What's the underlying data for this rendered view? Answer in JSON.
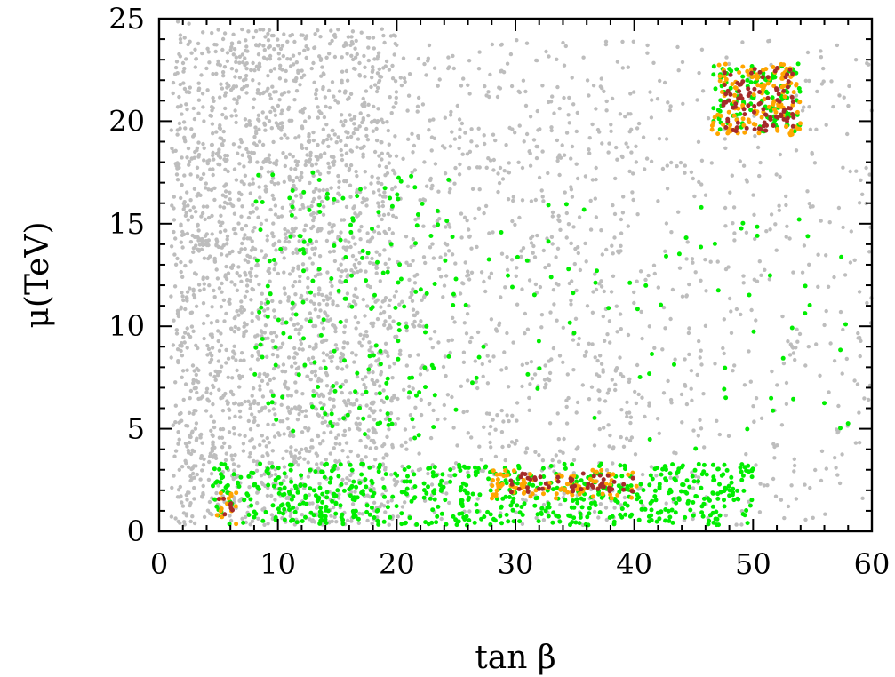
{
  "chart_data": {
    "type": "scatter",
    "xlabel": "tan β",
    "ylabel": "μ(TeV)",
    "xlim": [
      0,
      60
    ],
    "ylim": [
      0,
      25
    ],
    "xticks": [
      0,
      10,
      20,
      30,
      40,
      50,
      60
    ],
    "yticks": [
      0,
      5,
      10,
      15,
      20,
      25
    ],
    "xtick_labels": [
      "0",
      "10",
      "20",
      "30",
      "40",
      "50",
      "60"
    ],
    "ytick_labels": [
      "0",
      "5",
      "10",
      "15",
      "20",
      "25"
    ],
    "grid": false,
    "legend": "none",
    "colors": {
      "all_points": "#bdbdbd",
      "constraint_a": "#00ee00",
      "constraint_b": "#ffa500",
      "constraint_c": "#a52a2a"
    },
    "series": [
      {
        "color_key": "all_points",
        "regions": [
          {
            "x": [
              1,
              3
            ],
            "y": [
              0.3,
              25
            ],
            "density": "dense"
          },
          {
            "x": [
              3,
              20
            ],
            "y": [
              0.3,
              24.5
            ],
            "density": "dense"
          },
          {
            "x": [
              20,
              40
            ],
            "y": [
              0.3,
              24
            ],
            "density": "medium"
          },
          {
            "x": [
              40,
              60
            ],
            "y": [
              0.3,
              24
            ],
            "density": "sparse"
          }
        ]
      },
      {
        "color_key": "constraint_a",
        "regions": [
          {
            "x": [
              4.5,
              50
            ],
            "y": [
              0.3,
              3.3
            ],
            "density": "dense"
          },
          {
            "x": [
              8,
              25
            ],
            "y": [
              4.5,
              17.5
            ],
            "density": "sparse"
          },
          {
            "x": [
              25,
              58
            ],
            "y": [
              4,
              16
            ],
            "density": "very sparse"
          },
          {
            "x": [
              46.5,
              54
            ],
            "y": [
              19.5,
              22.8
            ],
            "density": "dense"
          }
        ]
      },
      {
        "color_key": "constraint_b",
        "regions": [
          {
            "x": [
              4.8,
              6.5
            ],
            "y": [
              0.3,
              2.0
            ],
            "density": "dense"
          },
          {
            "x": [
              28,
              41
            ],
            "y": [
              1.6,
              3.0
            ],
            "density": "dense"
          },
          {
            "x": [
              46.5,
              54
            ],
            "y": [
              19.3,
              22.8
            ],
            "density": "dense"
          }
        ]
      },
      {
        "color_key": "constraint_c",
        "regions": [
          {
            "x": [
              5,
              6.2
            ],
            "y": [
              0.6,
              1.7
            ],
            "density": "dense"
          },
          {
            "x": [
              29,
              40
            ],
            "y": [
              1.9,
              2.9
            ],
            "density": "dense"
          },
          {
            "x": [
              47.5,
              53.5
            ],
            "y": [
              19.5,
              22.6
            ],
            "density": "dense"
          }
        ]
      }
    ]
  }
}
